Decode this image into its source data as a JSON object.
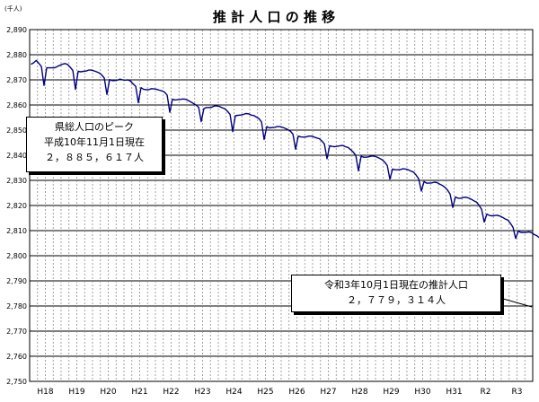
{
  "chart_data": {
    "type": "line",
    "title": "推 計 人 口 の 推 移",
    "unit_label": "(千人)",
    "ylim": [
      2750,
      2890
    ],
    "y_ticks": [
      "2,750",
      "2,760",
      "2,770",
      "2,780",
      "2,790",
      "2,800",
      "2,810",
      "2,820",
      "2,830",
      "2,840",
      "2,850",
      "2,860",
      "2,870",
      "2,880",
      "2,890"
    ],
    "x_ticks": [
      "H18",
      "H19",
      "H20",
      "H21",
      "H22",
      "H23",
      "H24",
      "H25",
      "H26",
      "H27",
      "H28",
      "H29",
      "H30",
      "H31",
      "R2",
      "R3"
    ],
    "grid": true,
    "line_color": "#000080",
    "annotations": [
      {
        "lines": [
          "県総人口のピーク",
          "平成10年11月1日現在",
          "２，８８５，６１７人"
        ]
      },
      {
        "lines": [
          "令和3年10月1日現在の推計人口",
          "２，７７９，３１４人"
        ]
      }
    ],
    "series": [
      {
        "period": "H18年1月 - 令和3年10月 (月次)",
        "values": [
          2876.2,
          2876.8,
          2877.7,
          2876.6,
          2875.3,
          2867.8,
          2874.8,
          2874.8,
          2874.8,
          2874.8,
          2875.3,
          2875.8,
          2876.2,
          2876.5,
          2876.1,
          2875.0,
          2873.7,
          2866.2,
          2873.4,
          2873.2,
          2873.4,
          2873.5,
          2873.9,
          2873.9,
          2873.6,
          2873.2,
          2872.8,
          2872.0,
          2870.7,
          2864.2,
          2870.1,
          2869.7,
          2869.7,
          2869.9,
          2870.3,
          2870.0,
          2869.9,
          2870.0,
          2869.5,
          2868.4,
          2867.4,
          2860.9,
          2866.9,
          2866.2,
          2866.1,
          2866.1,
          2866.5,
          2866.4,
          2866.2,
          2865.9,
          2865.6,
          2865.1,
          2863.9,
          2857.1,
          2862.3,
          2862.0,
          2862.1,
          2862.2,
          2862.4,
          2862.3,
          2861.8,
          2861.2,
          2860.6,
          2860.0,
          2859.1,
          2853.4,
          2858.6,
          2859.0,
          2859.0,
          2859.1,
          2859.6,
          2859.6,
          2859.4,
          2858.9,
          2858.5,
          2857.5,
          2856.3,
          2849.4,
          2855.7,
          2855.9,
          2856.0,
          2856.2,
          2856.6,
          2856.5,
          2856.0,
          2855.8,
          2855.2,
          2854.6,
          2853.3,
          2846.3,
          2851.4,
          2850.9,
          2851.0,
          2851.1,
          2851.4,
          2851.4,
          2851.1,
          2850.7,
          2850.2,
          2849.6,
          2848.4,
          2842.4,
          2847.6,
          2847.3,
          2847.2,
          2847.3,
          2847.6,
          2847.6,
          2847.3,
          2846.9,
          2846.6,
          2845.7,
          2844.5,
          2838.6,
          2843.8,
          2843.5,
          2843.4,
          2843.6,
          2843.8,
          2843.9,
          2843.4,
          2843.1,
          2842.2,
          2841.3,
          2839.9,
          2833.8,
          2839.6,
          2839.2,
          2839.2,
          2839.4,
          2839.7,
          2839.6,
          2839.3,
          2838.8,
          2838.2,
          2837.3,
          2835.9,
          2830.5,
          2834.5,
          2834.2,
          2834.2,
          2834.3,
          2834.6,
          2834.5,
          2834.2,
          2833.7,
          2833.3,
          2832.1,
          2830.6,
          2825.7,
          2829.5,
          2828.9,
          2828.9,
          2829.0,
          2829.3,
          2829.1,
          2828.5,
          2828.0,
          2827.2,
          2826.1,
          2824.5,
          2819.2,
          2823.4,
          2822.9,
          2822.9,
          2823.2,
          2823.3,
          2823.0,
          2822.5,
          2821.9,
          2821.4,
          2820.1,
          2818.5,
          2813.4,
          2816.6,
          2816.0,
          2815.9,
          2816.0,
          2816.1,
          2815.8,
          2815.3,
          2814.6,
          2814.2,
          2812.9,
          2811.3,
          2806.9,
          2809.8,
          2809.3,
          2809.3,
          2809.3,
          2809.5,
          2809.2,
          2808.5,
          2808.0,
          2807.2,
          2805.9,
          2804.0,
          2803.1,
          2803.6,
          2803.1,
          2802.8,
          2802.4,
          2802.4,
          2802.0,
          2801.2,
          2800.5,
          2799.7,
          2798.4,
          2797.3,
          2796.9,
          2796.4,
          2794.3,
          2791.7,
          2787.7,
          2787.6,
          2787.1,
          2786.0,
          2785.1,
          2784.3,
          2783.1,
          2781.3,
          2779.8,
          2779.3
        ]
      }
    ]
  }
}
